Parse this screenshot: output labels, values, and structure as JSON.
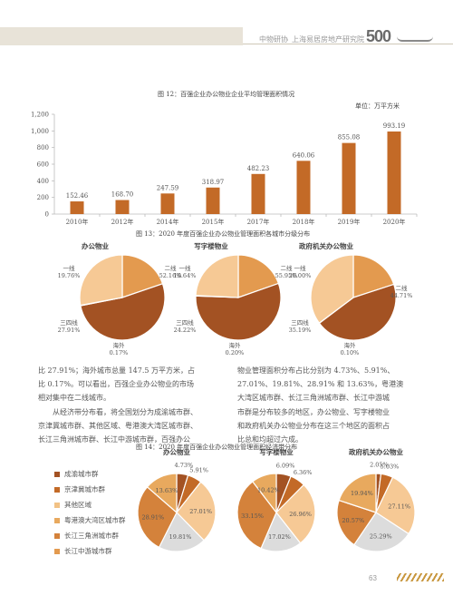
{
  "header": {
    "left_text": "中物研协",
    "right_text": "上海易居房地产研究院",
    "logo_text": "500",
    "colors": {
      "bar": "#e8e3d8",
      "accent": "#b5a27a"
    }
  },
  "page_number": "63",
  "colors": {
    "c1": "#f2c285",
    "c2": "#c36a27",
    "c3": "#a35223",
    "c4": "#e39a4f",
    "c5": "#d4823b",
    "c6": "#dcdcdc",
    "c7": "#f6c995",
    "c8": "#e8a95e",
    "axis": "#bbbbbb",
    "grid": "#d8d8d8"
  },
  "chart12": {
    "title": "图 12：百强企业办公物业企业平均管理面积情况",
    "unit": "单位：万平方米",
    "chart_data": {
      "type": "bar",
      "categories": [
        "2010年",
        "2012年",
        "2014年",
        "2015年",
        "2017年",
        "2018年",
        "2019年",
        "2020年"
      ],
      "values": [
        152.46,
        168.7,
        247.59,
        318.97,
        482.23,
        640.06,
        855.08,
        993.19
      ],
      "value_labels": [
        "152.46",
        "168.70",
        "247.59",
        "318.97",
        "482.23",
        "640.06",
        "855.08",
        "993.19"
      ],
      "y_ticks": [
        "0",
        "200",
        "400",
        "600",
        "800",
        "1,000",
        "1,200"
      ],
      "ylim": [
        0,
        1200
      ],
      "grid": false
    }
  },
  "chart13": {
    "title": "图 13：2020 年度百强企业办公物业管理面积各城市分级分布",
    "chart_data": [
      {
        "type": "pie",
        "title": "办公物业",
        "slices": [
          {
            "name": "一线",
            "value": 19.76,
            "label": "19.76%"
          },
          {
            "name": "二线",
            "value": 52.16,
            "label": "52.16%"
          },
          {
            "name": "海外",
            "value": 0.17,
            "label": "0.17%"
          },
          {
            "name": "三四线",
            "value": 27.91,
            "label": "27.91%"
          }
        ]
      },
      {
        "type": "pie",
        "title": "写字楼物业",
        "slices": [
          {
            "name": "一线",
            "value": 19.64,
            "label": "19.64%"
          },
          {
            "name": "二线",
            "value": 55.95,
            "label": "55.95%"
          },
          {
            "name": "海外",
            "value": 0.2,
            "label": "0.20%"
          },
          {
            "name": "三四线",
            "value": 24.22,
            "label": "24.22%"
          }
        ]
      },
      {
        "type": "pie",
        "title": "政府机关办公物业",
        "slices": [
          {
            "name": "一线",
            "value": 20.0,
            "label": "20.00%"
          },
          {
            "name": "二线",
            "value": 44.71,
            "label": "44.71%"
          },
          {
            "name": "海外",
            "value": 0.1,
            "label": "0.10%"
          },
          {
            "name": "三四线",
            "value": 35.19,
            "label": "35.19%"
          }
        ]
      }
    ]
  },
  "text_left": {
    "lines": [
      "比 27.91%；海外城市总量 147.5 万平方米，占",
      "比 0.17%。可以看出，百强企业办公物业的市场",
      "相对集中在二线城市。",
      "　　从经济带分布看，将全国划分为成渝城市群、",
      "京津冀城市群、其他区域、粤港澳大湾区城市群、",
      "长江三角洲城市群、长江中游城市群，百强办公"
    ]
  },
  "text_right": {
    "lines": [
      "物业管理面积分布占比分别为 4.73%、5.91%、",
      "27.01%、19.81%、28.91% 和 13.63%，粤港澳",
      "大湾区城市群、长江三角洲城市群、长江中游城",
      "市群是分布较多的地区，办公物业、写字楼物业",
      "和政府机关办公物业分布在这三个地区的面积占",
      "比总和均超过六成。"
    ]
  },
  "chart14": {
    "title": "图 14：2020 年度百强企业办公物业管理面积经济带分布",
    "legend": [
      "成渝城市群",
      "京津冀城市群",
      "其他区域",
      "粤港澳大湾区城市群",
      "长江三角洲城市群",
      "长江中游城市群"
    ],
    "chart_data": [
      {
        "type": "pie",
        "title": "办公物业",
        "slices": [
          {
            "name": "成渝城市群",
            "value": 4.73,
            "label": "4.73%"
          },
          {
            "name": "京津冀城市群",
            "value": 5.91,
            "label": "5.91%"
          },
          {
            "name": "其他区域",
            "value": 27.01,
            "label": "27.01%"
          },
          {
            "name": "粤港澳大湾区城市群",
            "value": 19.81,
            "label": "19.81%"
          },
          {
            "name": "长江三角洲城市群",
            "value": 28.91,
            "label": "28.91%"
          },
          {
            "name": "长江中游城市群",
            "value": 13.63,
            "label": "13.63%"
          }
        ]
      },
      {
        "type": "pie",
        "title": "写字楼物业",
        "slices": [
          {
            "name": "成渝城市群",
            "value": 6.09,
            "label": "6.09%"
          },
          {
            "name": "京津冀城市群",
            "value": 6.36,
            "label": "6.36%"
          },
          {
            "name": "其他区域",
            "value": 26.96,
            "label": "26.96%"
          },
          {
            "name": "粤港澳大湾区城市群",
            "value": 17.02,
            "label": "17.02%"
          },
          {
            "name": "长江三角洲城市群",
            "value": 33.15,
            "label": "33.15%"
          },
          {
            "name": "长江中游城市群",
            "value": 10.42,
            "label": "10.42%"
          }
        ]
      },
      {
        "type": "pie",
        "title": "政府机关办公物业",
        "slices": [
          {
            "name": "成渝城市群",
            "value": 2.05,
            "label": "2.05%"
          },
          {
            "name": "京津冀城市群",
            "value": 5.03,
            "label": "5.03%"
          },
          {
            "name": "其他区域",
            "value": 27.11,
            "label": "27.11%"
          },
          {
            "name": "粤港澳大湾区城市群",
            "value": 25.29,
            "label": "25.29%"
          },
          {
            "name": "长江三角洲城市群",
            "value": 20.57,
            "label": "20.57%"
          },
          {
            "name": "长江中游城市群",
            "value": 19.94,
            "label": "19.94%"
          }
        ]
      }
    ]
  }
}
